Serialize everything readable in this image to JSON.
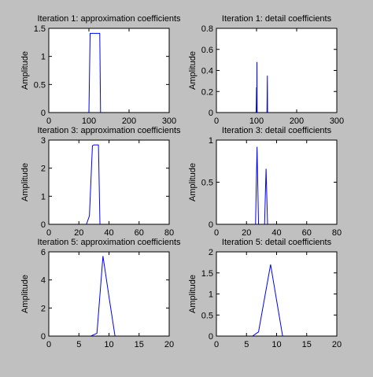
{
  "chart_data": [
    {
      "type": "line",
      "title": "Iteration 1: approximation coefficients",
      "y_label": "Amplitude",
      "x": [
        0,
        100,
        103,
        127,
        129,
        260
      ],
      "values": [
        0,
        0,
        1.41,
        1.41,
        0,
        0
      ],
      "color": "#0000ff",
      "xlim": [
        0,
        300
      ],
      "ylim": [
        0,
        1.5
      ],
      "xticks": [
        0,
        100,
        200,
        300
      ],
      "yticks": [
        0,
        0.5,
        1,
        1.5
      ]
    },
    {
      "type": "line",
      "title": "Iteration 1: detail coefficients",
      "y_label": "Amplitude",
      "x": [
        0,
        99,
        100,
        100.5,
        101,
        101.5,
        102,
        126,
        127,
        127.5,
        128,
        260
      ],
      "values": [
        0,
        0,
        0.24,
        0,
        0.48,
        0,
        0,
        0,
        0.35,
        0,
        0,
        0
      ],
      "color": "#0000ff",
      "xlim": [
        0,
        300
      ],
      "ylim": [
        0,
        0.8
      ],
      "xticks": [
        0,
        100,
        200,
        300
      ],
      "yticks": [
        0,
        0.2,
        0.4,
        0.6,
        0.8
      ]
    },
    {
      "type": "line",
      "title": "Iteration 3: approximation coefficients",
      "y_label": "Amplitude",
      "x": [
        0,
        25,
        27,
        29,
        30,
        33,
        34,
        70
      ],
      "values": [
        0,
        0,
        0.3,
        2.8,
        2.83,
        2.83,
        0,
        0
      ],
      "color": "#0000ff",
      "xlim": [
        0,
        80
      ],
      "ylim": [
        0,
        3
      ],
      "xticks": [
        0,
        20,
        40,
        60,
        80
      ],
      "yticks": [
        0,
        1,
        2,
        3
      ]
    },
    {
      "type": "line",
      "title": "Iteration 3: detail coefficients",
      "y_label": "Amplitude",
      "x": [
        0,
        26,
        27,
        28,
        32,
        33,
        34,
        70
      ],
      "values": [
        0,
        0,
        0.92,
        0,
        0,
        0.66,
        0,
        0
      ],
      "color": "#0000ff",
      "xlim": [
        0,
        80
      ],
      "ylim": [
        0,
        1
      ],
      "xticks": [
        0,
        20,
        40,
        60,
        80
      ],
      "yticks": [
        0,
        0.5,
        1
      ]
    },
    {
      "type": "line",
      "title": "Iteration 5: approximation coefficients",
      "y_label": "Amplitude",
      "x": [
        0,
        7,
        8,
        9,
        10,
        11,
        18
      ],
      "values": [
        0,
        0,
        0.2,
        5.7,
        2.8,
        0,
        0
      ],
      "color": "#0000ff",
      "xlim": [
        0,
        20
      ],
      "ylim": [
        0,
        6
      ],
      "xticks": [
        0,
        5,
        10,
        15,
        20
      ],
      "yticks": [
        0,
        2,
        4,
        6
      ]
    },
    {
      "type": "line",
      "title": "Iteration 5: detail coefficients",
      "y_label": "Amplitude",
      "x": [
        0,
        6,
        7,
        8,
        9,
        10,
        11,
        18
      ],
      "values": [
        0,
        0,
        0.1,
        0.9,
        1.7,
        0.85,
        0,
        0
      ],
      "color": "#0000ff",
      "xlim": [
        0,
        20
      ],
      "ylim": [
        0,
        2
      ],
      "xticks": [
        0,
        5,
        10,
        15,
        20
      ],
      "yticks": [
        0,
        0.5,
        1,
        1.5,
        2
      ]
    }
  ]
}
